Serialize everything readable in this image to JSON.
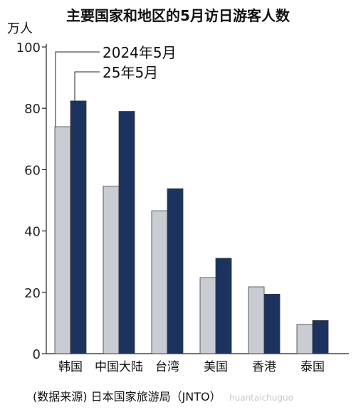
{
  "chart_data": {
    "type": "bar",
    "title": "主要国家和地区的5月访日游客人数",
    "unit_label": "万人",
    "categories": [
      "韩国",
      "中国大陆",
      "台湾",
      "美国",
      "香港",
      "泰国"
    ],
    "series": [
      {
        "name": "2024年5月",
        "color": "#c9cdd3",
        "values": [
          74,
          54.6,
          46.6,
          24.8,
          21.8,
          9.5
        ]
      },
      {
        "name": "25年5月",
        "color": "#1c3360",
        "values": [
          82.4,
          79,
          53.8,
          31.1,
          19.4,
          10.8
        ]
      }
    ],
    "ylim": [
      0,
      100
    ],
    "yticks": [
      0,
      20,
      40,
      60,
      80,
      100
    ],
    "legend_position": "top-left, leader lines",
    "grid": false
  },
  "source_note": "(数据来源) 日本国家旅游局（JNTO）",
  "watermark": "huantaichuguo"
}
